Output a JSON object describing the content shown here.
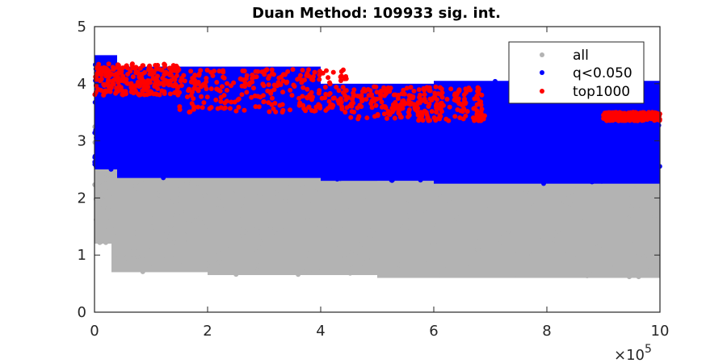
{
  "chart_data": {
    "type": "scatter",
    "title": "Duan Method: 109933 sig. int.",
    "xlabel": "",
    "ylabel": "",
    "xlim": [
      0,
      1000000
    ],
    "ylim": [
      0,
      5
    ],
    "x_ticks": [
      0,
      200000,
      400000,
      600000,
      800000,
      1000000
    ],
    "x_tick_labels": [
      "0",
      "2",
      "4",
      "6",
      "8",
      "10"
    ],
    "x_exponent_label": "×10",
    "x_exponent_power": "5",
    "y_ticks": [
      0,
      1,
      2,
      3,
      4,
      5
    ],
    "y_tick_labels": [
      "0",
      "1",
      "2",
      "3",
      "4",
      "5"
    ],
    "grid": false,
    "legend_position": "top-right",
    "series": [
      {
        "name": "all",
        "color": "#b3b3b3",
        "bands": [
          {
            "x_range": [
              0,
              30000
            ],
            "y_range": [
              1.2,
              4.4
            ]
          },
          {
            "x_range": [
              30000,
              200000
            ],
            "y_range": [
              0.7,
              2.7
            ]
          },
          {
            "x_range": [
              200000,
              500000
            ],
            "y_range": [
              0.65,
              2.4
            ]
          },
          {
            "x_range": [
              500000,
              1000000
            ],
            "y_range": [
              0.6,
              2.3
            ]
          }
        ]
      },
      {
        "name": "q<0.050",
        "color": "#0000ff",
        "bands": [
          {
            "x_range": [
              0,
              40000
            ],
            "y_range": [
              2.5,
              4.5
            ]
          },
          {
            "x_range": [
              40000,
              400000
            ],
            "y_range": [
              2.35,
              4.3
            ]
          },
          {
            "x_range": [
              400000,
              600000
            ],
            "y_range": [
              2.3,
              4.0
            ]
          },
          {
            "x_range": [
              600000,
              1000000
            ],
            "y_range": [
              2.25,
              4.05
            ]
          }
        ]
      },
      {
        "name": "top1000",
        "color": "#ff0000",
        "bands": [
          {
            "x_range": [
              0,
              150000
            ],
            "y_range": [
              3.8,
              4.35
            ]
          },
          {
            "x_range": [
              150000,
              450000
            ],
            "y_range": [
              3.5,
              4.25
            ]
          },
          {
            "x_range": [
              450000,
              690000
            ],
            "y_range": [
              3.35,
              3.95
            ]
          },
          {
            "x_range": [
              900000,
              1000000
            ],
            "y_range": [
              3.35,
              3.5
            ]
          }
        ]
      }
    ]
  }
}
